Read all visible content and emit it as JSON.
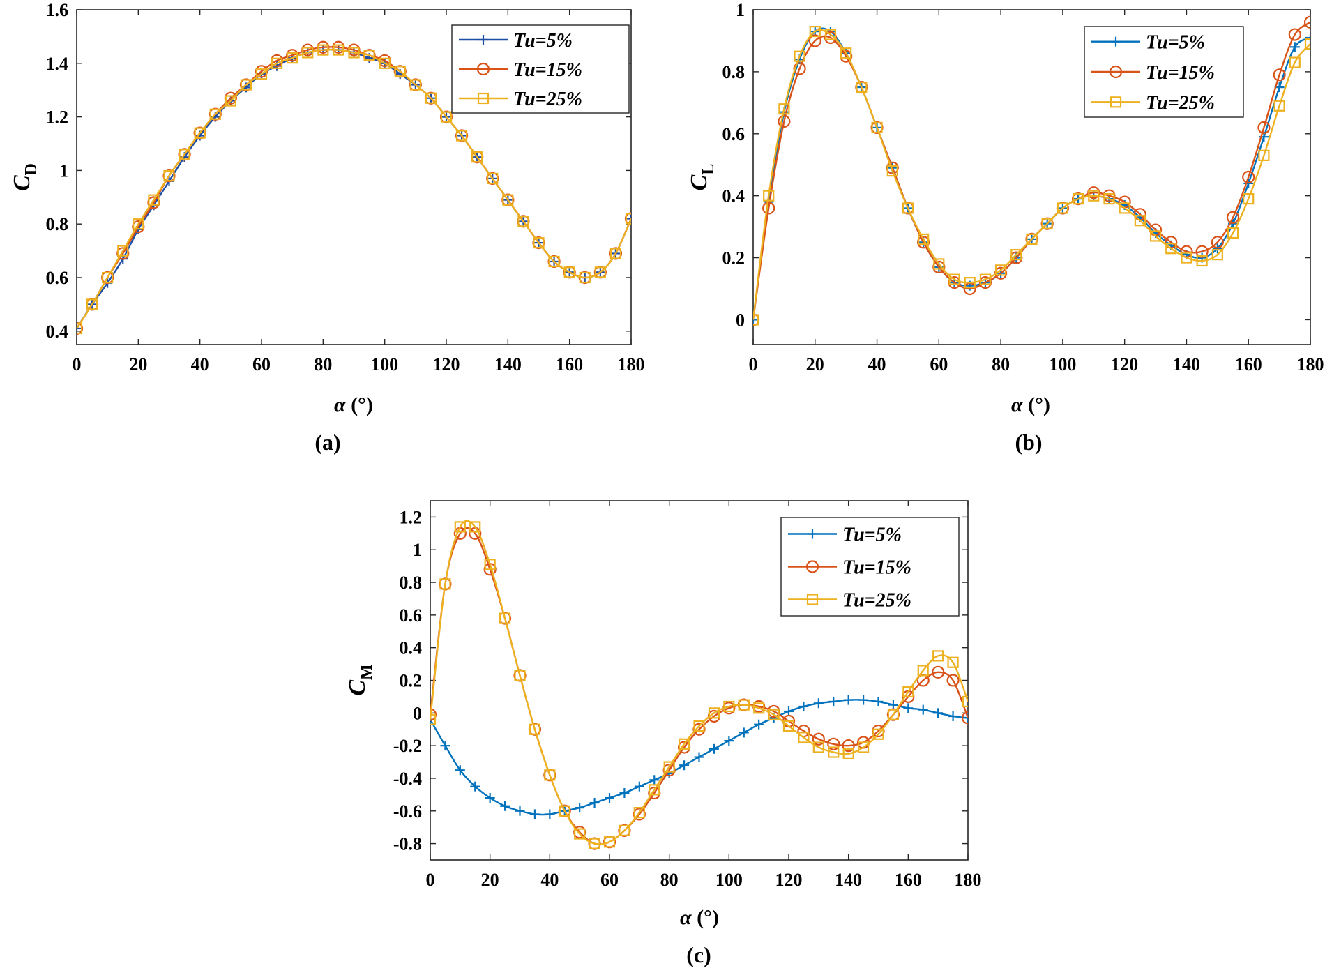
{
  "chart_data": [
    {
      "panel": "a",
      "type": "line",
      "caption": "(a)",
      "xlabel": "α (°)",
      "ylabel_main": "C",
      "ylabel_sub": "D",
      "xlim": [
        0,
        180
      ],
      "ylim": [
        0.35,
        1.6
      ],
      "xticks": [
        0,
        20,
        40,
        60,
        80,
        100,
        120,
        140,
        160,
        180
      ],
      "yticks": [
        0.4,
        0.6,
        0.8,
        1,
        1.2,
        1.4,
        1.6
      ],
      "ytick_labels": [
        "0.4",
        "0.6",
        "0.8",
        "1",
        "1.2",
        "1.4",
        "1.6"
      ],
      "legend_position": "top-right",
      "x": [
        0,
        5,
        10,
        15,
        20,
        25,
        30,
        35,
        40,
        45,
        50,
        55,
        60,
        65,
        70,
        75,
        80,
        85,
        90,
        95,
        100,
        105,
        110,
        115,
        120,
        125,
        130,
        135,
        140,
        145,
        150,
        155,
        160,
        165,
        170,
        175,
        180
      ],
      "series": [
        {
          "name": "Tu=5%",
          "marker": "plus",
          "color": "#1f4fa5",
          "values": [
            0.41,
            0.5,
            0.58,
            0.67,
            0.78,
            0.87,
            0.96,
            1.05,
            1.13,
            1.2,
            1.26,
            1.31,
            1.36,
            1.39,
            1.42,
            1.44,
            1.45,
            1.45,
            1.44,
            1.42,
            1.4,
            1.36,
            1.32,
            1.27,
            1.2,
            1.13,
            1.05,
            0.97,
            0.89,
            0.81,
            0.73,
            0.66,
            0.62,
            0.6,
            0.62,
            0.69,
            0.82
          ]
        },
        {
          "name": "Tu=15%",
          "marker": "circle",
          "color": "#d95319",
          "values": [
            0.41,
            0.5,
            0.6,
            0.69,
            0.79,
            0.88,
            0.98,
            1.06,
            1.14,
            1.21,
            1.27,
            1.32,
            1.37,
            1.41,
            1.43,
            1.45,
            1.46,
            1.46,
            1.45,
            1.43,
            1.41,
            1.37,
            1.32,
            1.27,
            1.2,
            1.13,
            1.05,
            0.97,
            0.89,
            0.81,
            0.73,
            0.66,
            0.62,
            0.6,
            0.62,
            0.69,
            0.82
          ]
        },
        {
          "name": "Tu=25%",
          "marker": "square",
          "color": "#edb120",
          "values": [
            0.41,
            0.5,
            0.6,
            0.7,
            0.8,
            0.89,
            0.98,
            1.06,
            1.14,
            1.21,
            1.26,
            1.32,
            1.36,
            1.4,
            1.42,
            1.44,
            1.45,
            1.45,
            1.44,
            1.43,
            1.4,
            1.37,
            1.32,
            1.27,
            1.2,
            1.13,
            1.05,
            0.97,
            0.89,
            0.81,
            0.73,
            0.66,
            0.62,
            0.6,
            0.62,
            0.69,
            0.82
          ]
        }
      ]
    },
    {
      "panel": "b",
      "type": "line",
      "caption": "(b)",
      "xlabel": "α (°)",
      "ylabel_main": "C",
      "ylabel_sub": "L",
      "xlim": [
        0,
        180
      ],
      "ylim": [
        -0.08,
        1.0
      ],
      "xticks": [
        0,
        20,
        40,
        60,
        80,
        100,
        120,
        140,
        160,
        180
      ],
      "yticks": [
        0,
        0.2,
        0.4,
        0.6,
        0.8,
        1
      ],
      "ytick_labels": [
        "0",
        "0.2",
        "0.4",
        "0.6",
        "0.8",
        "1"
      ],
      "legend_position": "top-right",
      "x": [
        0,
        5,
        10,
        15,
        20,
        25,
        30,
        35,
        40,
        45,
        50,
        55,
        60,
        65,
        70,
        75,
        80,
        85,
        90,
        95,
        100,
        105,
        110,
        115,
        120,
        125,
        130,
        135,
        140,
        145,
        150,
        155,
        160,
        165,
        170,
        175,
        180
      ],
      "series": [
        {
          "name": "Tu=5%",
          "marker": "plus",
          "color": "#0072bd",
          "values": [
            0.0,
            0.38,
            0.67,
            0.84,
            0.93,
            0.93,
            0.86,
            0.75,
            0.62,
            0.49,
            0.36,
            0.25,
            0.17,
            0.12,
            0.11,
            0.12,
            0.15,
            0.2,
            0.26,
            0.31,
            0.36,
            0.39,
            0.4,
            0.39,
            0.37,
            0.33,
            0.28,
            0.24,
            0.21,
            0.2,
            0.23,
            0.31,
            0.44,
            0.59,
            0.75,
            0.88,
            0.91
          ]
        },
        {
          "name": "Tu=15%",
          "marker": "circle",
          "color": "#d95319",
          "values": [
            0.0,
            0.36,
            0.64,
            0.81,
            0.9,
            0.91,
            0.85,
            0.75,
            0.62,
            0.49,
            0.36,
            0.25,
            0.17,
            0.12,
            0.1,
            0.12,
            0.15,
            0.2,
            0.26,
            0.31,
            0.36,
            0.39,
            0.41,
            0.4,
            0.38,
            0.34,
            0.29,
            0.25,
            0.22,
            0.22,
            0.25,
            0.33,
            0.46,
            0.62,
            0.79,
            0.92,
            0.96
          ]
        },
        {
          "name": "Tu=25%",
          "marker": "square",
          "color": "#edb120",
          "values": [
            0.0,
            0.4,
            0.68,
            0.85,
            0.93,
            0.92,
            0.86,
            0.75,
            0.62,
            0.48,
            0.36,
            0.26,
            0.18,
            0.13,
            0.12,
            0.13,
            0.16,
            0.21,
            0.26,
            0.31,
            0.36,
            0.39,
            0.4,
            0.39,
            0.36,
            0.32,
            0.27,
            0.23,
            0.2,
            0.19,
            0.21,
            0.28,
            0.39,
            0.53,
            0.69,
            0.83,
            0.89
          ]
        }
      ]
    },
    {
      "panel": "c",
      "type": "line",
      "caption": "(c)",
      "xlabel": "α (°)",
      "ylabel_main": "C",
      "ylabel_sub": "M",
      "xlim": [
        0,
        180
      ],
      "ylim": [
        -0.9,
        1.3
      ],
      "xticks": [
        0,
        20,
        40,
        60,
        80,
        100,
        120,
        140,
        160,
        180
      ],
      "yticks": [
        -0.8,
        -0.6,
        -0.4,
        -0.2,
        0,
        0.2,
        0.4,
        0.6,
        0.8,
        1,
        1.2
      ],
      "ytick_labels": [
        "-0.8",
        "-0.6",
        "-0.4",
        "-0.2",
        "0",
        "0.2",
        "0.4",
        "0.6",
        "0.8",
        "1",
        "1.2"
      ],
      "legend_position": "top-right",
      "x5": [
        0,
        5,
        10,
        15,
        20,
        25,
        30,
        35,
        40,
        45,
        50,
        55,
        60,
        65,
        70,
        75,
        80,
        85,
        90,
        95,
        100,
        105,
        110,
        115,
        120,
        125,
        130,
        135,
        140,
        145,
        150,
        155,
        160,
        165,
        170,
        175,
        180
      ],
      "x": [
        0,
        5,
        10,
        15,
        20,
        25,
        30,
        35,
        40,
        45,
        50,
        55,
        60,
        65,
        70,
        75,
        80,
        85,
        90,
        95,
        100,
        105,
        110,
        115,
        120,
        125,
        130,
        135,
        140,
        145,
        150,
        155,
        160,
        165,
        170,
        175,
        180
      ],
      "series": [
        {
          "name": "Tu=5%",
          "marker": "plus",
          "color": "#0072bd",
          "values": [
            -0.04,
            -0.2,
            -0.35,
            -0.45,
            -0.52,
            -0.57,
            -0.6,
            -0.62,
            -0.62,
            -0.6,
            -0.58,
            -0.55,
            -0.52,
            -0.49,
            -0.45,
            -0.41,
            -0.37,
            -0.32,
            -0.27,
            -0.22,
            -0.17,
            -0.12,
            -0.07,
            -0.03,
            0.01,
            0.04,
            0.06,
            0.07,
            0.08,
            0.08,
            0.07,
            0.05,
            0.03,
            0.02,
            0.0,
            -0.02,
            -0.03
          ]
        },
        {
          "name": "Tu=15%",
          "marker": "circle",
          "color": "#d95319",
          "values": [
            -0.01,
            0.79,
            1.1,
            1.1,
            0.88,
            0.58,
            0.23,
            -0.1,
            -0.38,
            -0.6,
            -0.73,
            -0.8,
            -0.79,
            -0.72,
            -0.62,
            -0.49,
            -0.35,
            -0.21,
            -0.1,
            -0.02,
            0.03,
            0.05,
            0.04,
            0.01,
            -0.05,
            -0.11,
            -0.16,
            -0.19,
            -0.2,
            -0.18,
            -0.11,
            -0.01,
            0.1,
            0.2,
            0.25,
            0.2,
            -0.03
          ]
        },
        {
          "name": "Tu=25%",
          "marker": "square",
          "color": "#edb120",
          "values": [
            -0.04,
            0.79,
            1.14,
            1.14,
            0.91,
            0.58,
            0.23,
            -0.1,
            -0.38,
            -0.6,
            -0.74,
            -0.8,
            -0.79,
            -0.72,
            -0.61,
            -0.47,
            -0.33,
            -0.19,
            -0.08,
            0.0,
            0.04,
            0.05,
            0.03,
            -0.01,
            -0.08,
            -0.15,
            -0.21,
            -0.24,
            -0.25,
            -0.21,
            -0.13,
            -0.01,
            0.13,
            0.26,
            0.35,
            0.31,
            0.07
          ]
        }
      ]
    }
  ]
}
